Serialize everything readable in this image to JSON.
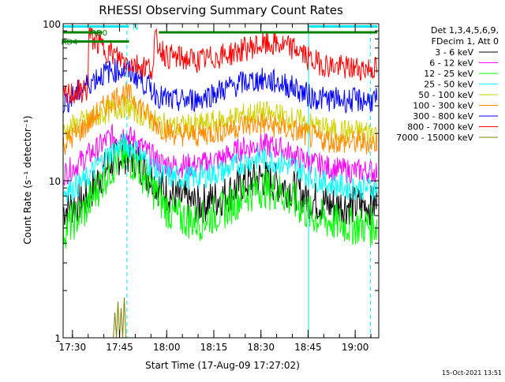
{
  "chart_data": {
    "type": "line",
    "title": "RHESSI Observing Summary Count Rates",
    "xlabel": "Start Time (17-Aug-09 17:27:02)",
    "ylabel": "Count Rate (s⁻¹ detector⁻¹)",
    "yscale": "log",
    "ylim": [
      1,
      100
    ],
    "xlim": [
      "17:27:02",
      "19:07:30"
    ],
    "x_ticks": [
      "17:30",
      "17:45",
      "18:00",
      "18:15",
      "18:30",
      "18:45",
      "19:00"
    ],
    "y_ticks": [
      "1",
      "10",
      "100"
    ],
    "footer_timestamp": "15-Oct-2021 13:51",
    "legend_header": [
      "Det 1,3,4,5,6,9,",
      "FDecim 1, Att 0"
    ],
    "legend_position": "right",
    "grid": false,
    "vertical_markers_solid": [
      "17:27:02",
      "18:45:10"
    ],
    "vertical_markers_dashed": [
      "17:47:20",
      "19:04:50"
    ],
    "flag_bars": [
      {
        "name": "N",
        "color": "#00e5ee",
        "start": "17:27:02",
        "end": "17:48:00",
        "level": 96
      },
      {
        "name": "RD0",
        "color": "#008000",
        "start": "17:27:02",
        "end": "17:39:30",
        "level": 88
      },
      {
        "name": "RD4",
        "color": "#008000",
        "start": "17:27:02",
        "end": "17:48:00",
        "level": 77
      },
      {
        "name": "",
        "color": "#008000",
        "start": "17:57:30",
        "end": "19:07:00",
        "level": 88
      },
      {
        "name": "",
        "color": "#00e5ee",
        "start": "18:45:10",
        "end": "19:07:00",
        "level": 96
      }
    ],
    "series": [
      {
        "name": "3 - 6 keV",
        "color": "#000000",
        "x": [
          "17:27",
          "17:30",
          "17:34",
          "17:38",
          "17:42",
          "17:46",
          "17:50",
          "17:54",
          "17:58",
          "18:02",
          "18:10",
          "18:18",
          "18:24",
          "18:30",
          "18:36",
          "18:42",
          "18:46",
          "18:52",
          "18:58",
          "19:04",
          "19:07"
        ],
        "values": [
          6.5,
          7,
          7.5,
          10,
          13,
          15,
          14,
          11,
          9,
          8,
          7,
          8,
          9.5,
          10.5,
          9.5,
          8.5,
          7.5,
          7,
          7,
          7,
          7
        ]
      },
      {
        "name": "6 - 12 keV",
        "color": "#ff00ff",
        "x": [
          "17:27",
          "17:30",
          "17:34",
          "17:38",
          "17:42",
          "17:46",
          "17:50",
          "17:54",
          "17:58",
          "18:02",
          "18:10",
          "18:18",
          "18:24",
          "18:30",
          "18:36",
          "18:42",
          "18:46",
          "18:52",
          "18:58",
          "19:04",
          "19:07"
        ],
        "values": [
          11,
          12,
          14,
          16,
          19,
          20,
          18,
          15,
          13,
          12.5,
          12.5,
          14,
          16,
          17,
          16,
          14,
          13,
          12,
          11.5,
          11.5,
          11.5
        ]
      },
      {
        "name": "12 - 25 keV",
        "color": "#00ff00",
        "x": [
          "17:27",
          "17:30",
          "17:34",
          "17:38",
          "17:42",
          "17:46",
          "17:50",
          "17:54",
          "17:58",
          "18:02",
          "18:10",
          "18:18",
          "18:24",
          "18:30",
          "18:36",
          "18:42",
          "18:46",
          "18:52",
          "18:58",
          "19:04",
          "19:07"
        ],
        "values": [
          4.8,
          5.5,
          6.5,
          9,
          12,
          14,
          13,
          10,
          7.5,
          6,
          5.5,
          6.5,
          8,
          9,
          8.5,
          7,
          6,
          5.5,
          5.2,
          5.2,
          5.2
        ]
      },
      {
        "name": "25 - 50 keV",
        "color": "#00ffff",
        "x": [
          "17:27",
          "17:30",
          "17:34",
          "17:38",
          "17:42",
          "17:46",
          "17:50",
          "17:54",
          "17:58",
          "18:02",
          "18:10",
          "18:18",
          "18:24",
          "18:30",
          "18:36",
          "18:42",
          "18:46",
          "18:52",
          "18:58",
          "19:04",
          "19:07"
        ],
        "values": [
          8.5,
          9,
          10,
          12.5,
          15,
          17,
          16,
          13,
          11,
          10.5,
          10.5,
          11.5,
          13,
          14,
          13,
          12,
          10.5,
          9.5,
          9,
          9,
          9
        ]
      },
      {
        "name": "50 - 100 keV",
        "color": "#d2d200",
        "x": [
          "17:27",
          "17:30",
          "17:34",
          "17:38",
          "17:42",
          "17:46",
          "17:50",
          "17:54",
          "17:58",
          "18:02",
          "18:10",
          "18:18",
          "18:24",
          "18:30",
          "18:36",
          "18:42",
          "18:46",
          "18:52",
          "18:58",
          "19:04",
          "19:07"
        ],
        "values": [
          20,
          22,
          24,
          26,
          28,
          30,
          28,
          25,
          23,
          22,
          22.5,
          24,
          26,
          27,
          26,
          24,
          22.5,
          21,
          20.5,
          20.5,
          20.5
        ]
      },
      {
        "name": "100 - 300 keV",
        "color": "#ff8c00",
        "x": [
          "17:27",
          "17:30",
          "17:34",
          "17:38",
          "17:42",
          "17:46",
          "17:50",
          "17:54",
          "17:58",
          "18:02",
          "18:10",
          "18:18",
          "18:24",
          "18:30",
          "18:36",
          "18:42",
          "18:46",
          "18:52",
          "18:58",
          "19:04",
          "19:07"
        ],
        "values": [
          17,
          19,
          22,
          27,
          32,
          36,
          33,
          26,
          22,
          20,
          19.5,
          21,
          22.5,
          23,
          22,
          20.5,
          19,
          18,
          17.5,
          17.5,
          17.5
        ]
      },
      {
        "name": "300 - 800 keV",
        "color": "#0000ff",
        "x": [
          "17:27",
          "17:30",
          "17:34",
          "17:38",
          "17:42",
          "17:46",
          "17:50",
          "17:54",
          "17:58",
          "18:02",
          "18:10",
          "18:18",
          "18:24",
          "18:30",
          "18:36",
          "18:42",
          "18:46",
          "18:52",
          "18:58",
          "19:04",
          "19:07"
        ],
        "values": [
          31,
          34,
          40,
          46,
          50,
          51,
          47,
          40,
          34,
          32,
          33,
          38,
          42,
          44,
          42,
          38,
          34,
          33,
          32.5,
          32.5,
          32.5
        ]
      },
      {
        "name": "800 - 7000 keV",
        "color": "#ff0000",
        "x": [
          "17:27",
          "17:30",
          "17:35",
          "17:35.1",
          "17:40",
          "17:45",
          "17:50",
          "17:56",
          "17:56.1",
          "18:00",
          "18:10",
          "18:20",
          "18:28",
          "18:35",
          "18:42",
          "18:46",
          "18:52",
          "18:58",
          "19:04",
          "19:07"
        ],
        "values": [
          34,
          36,
          38,
          85,
          70,
          60,
          55,
          52,
          80,
          62,
          58,
          64,
          72,
          74,
          68,
          58,
          54,
          52,
          52,
          52
        ]
      },
      {
        "name": "7000 - 15000 keV",
        "color": "#808000",
        "x": [
          "17:43",
          "17:43.5",
          "17:44",
          "17:44.5",
          "17:45",
          "17:45.5",
          "17:46",
          "17:46.5",
          "17:47"
        ],
        "values": [
          1,
          1.45,
          1,
          1.7,
          1,
          1.55,
          1,
          1.8,
          1
        ]
      }
    ]
  }
}
